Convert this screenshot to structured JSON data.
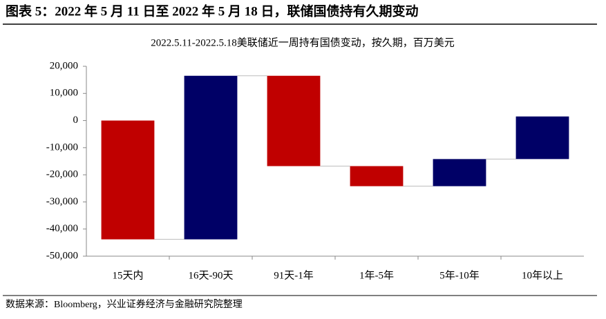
{
  "chart_data": {
    "type": "waterfall",
    "figure_title": "图表 5：2022 年 5 月 11 日至 2022 年 5 月 18 日，联储国债持有久期变动",
    "title": "2022.5.11-2022.5.18美联储近一周持有国债变动，按久期，百万美元",
    "source": "数据来源：Bloomberg，兴业证券经济与金融研究院整理",
    "categories": [
      "15天内",
      "16天-90天",
      "91天-1年",
      "1年-5年",
      "5年-10年",
      "10年以上"
    ],
    "values": [
      -43800,
      60300,
      -33300,
      -7400,
      10000,
      15700
    ],
    "colors": {
      "increase": "#000066",
      "decrease": "#c00000"
    },
    "ylim": [
      -50000,
      20000
    ],
    "yticks": [
      {
        "value": -50000,
        "label": "-50,000"
      },
      {
        "value": -40000,
        "label": "-40,000"
      },
      {
        "value": -30000,
        "label": "-30,000"
      },
      {
        "value": -20000,
        "label": "-20,000"
      },
      {
        "value": -10000,
        "label": "-10,000"
      },
      0,
      {
        "value": 10000,
        "label": "10,000"
      },
      {
        "value": 20000,
        "label": "20,000"
      }
    ],
    "grid": false
  }
}
